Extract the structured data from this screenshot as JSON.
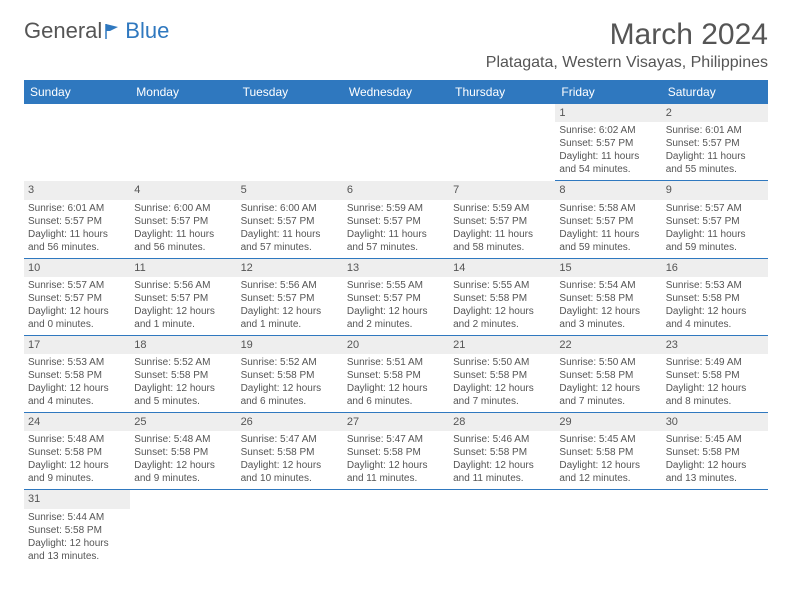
{
  "logo": {
    "part1": "General",
    "part2": "Blue"
  },
  "title": "March 2024",
  "location": "Platagata, Western Visayas, Philippines",
  "colors": {
    "header_bg": "#2f78bf",
    "header_text": "#ffffff",
    "daynum_bg": "#eeeeee",
    "text": "#555555",
    "row_divider": "#2f78bf"
  },
  "weekdays": [
    "Sunday",
    "Monday",
    "Tuesday",
    "Wednesday",
    "Thursday",
    "Friday",
    "Saturday"
  ],
  "weeks": [
    [
      null,
      null,
      null,
      null,
      null,
      {
        "n": "1",
        "sr": "Sunrise: 6:02 AM",
        "ss": "Sunset: 5:57 PM",
        "dl": "Daylight: 11 hours and 54 minutes."
      },
      {
        "n": "2",
        "sr": "Sunrise: 6:01 AM",
        "ss": "Sunset: 5:57 PM",
        "dl": "Daylight: 11 hours and 55 minutes."
      }
    ],
    [
      {
        "n": "3",
        "sr": "Sunrise: 6:01 AM",
        "ss": "Sunset: 5:57 PM",
        "dl": "Daylight: 11 hours and 56 minutes."
      },
      {
        "n": "4",
        "sr": "Sunrise: 6:00 AM",
        "ss": "Sunset: 5:57 PM",
        "dl": "Daylight: 11 hours and 56 minutes."
      },
      {
        "n": "5",
        "sr": "Sunrise: 6:00 AM",
        "ss": "Sunset: 5:57 PM",
        "dl": "Daylight: 11 hours and 57 minutes."
      },
      {
        "n": "6",
        "sr": "Sunrise: 5:59 AM",
        "ss": "Sunset: 5:57 PM",
        "dl": "Daylight: 11 hours and 57 minutes."
      },
      {
        "n": "7",
        "sr": "Sunrise: 5:59 AM",
        "ss": "Sunset: 5:57 PM",
        "dl": "Daylight: 11 hours and 58 minutes."
      },
      {
        "n": "8",
        "sr": "Sunrise: 5:58 AM",
        "ss": "Sunset: 5:57 PM",
        "dl": "Daylight: 11 hours and 59 minutes."
      },
      {
        "n": "9",
        "sr": "Sunrise: 5:57 AM",
        "ss": "Sunset: 5:57 PM",
        "dl": "Daylight: 11 hours and 59 minutes."
      }
    ],
    [
      {
        "n": "10",
        "sr": "Sunrise: 5:57 AM",
        "ss": "Sunset: 5:57 PM",
        "dl": "Daylight: 12 hours and 0 minutes."
      },
      {
        "n": "11",
        "sr": "Sunrise: 5:56 AM",
        "ss": "Sunset: 5:57 PM",
        "dl": "Daylight: 12 hours and 1 minute."
      },
      {
        "n": "12",
        "sr": "Sunrise: 5:56 AM",
        "ss": "Sunset: 5:57 PM",
        "dl": "Daylight: 12 hours and 1 minute."
      },
      {
        "n": "13",
        "sr": "Sunrise: 5:55 AM",
        "ss": "Sunset: 5:57 PM",
        "dl": "Daylight: 12 hours and 2 minutes."
      },
      {
        "n": "14",
        "sr": "Sunrise: 5:55 AM",
        "ss": "Sunset: 5:58 PM",
        "dl": "Daylight: 12 hours and 2 minutes."
      },
      {
        "n": "15",
        "sr": "Sunrise: 5:54 AM",
        "ss": "Sunset: 5:58 PM",
        "dl": "Daylight: 12 hours and 3 minutes."
      },
      {
        "n": "16",
        "sr": "Sunrise: 5:53 AM",
        "ss": "Sunset: 5:58 PM",
        "dl": "Daylight: 12 hours and 4 minutes."
      }
    ],
    [
      {
        "n": "17",
        "sr": "Sunrise: 5:53 AM",
        "ss": "Sunset: 5:58 PM",
        "dl": "Daylight: 12 hours and 4 minutes."
      },
      {
        "n": "18",
        "sr": "Sunrise: 5:52 AM",
        "ss": "Sunset: 5:58 PM",
        "dl": "Daylight: 12 hours and 5 minutes."
      },
      {
        "n": "19",
        "sr": "Sunrise: 5:52 AM",
        "ss": "Sunset: 5:58 PM",
        "dl": "Daylight: 12 hours and 6 minutes."
      },
      {
        "n": "20",
        "sr": "Sunrise: 5:51 AM",
        "ss": "Sunset: 5:58 PM",
        "dl": "Daylight: 12 hours and 6 minutes."
      },
      {
        "n": "21",
        "sr": "Sunrise: 5:50 AM",
        "ss": "Sunset: 5:58 PM",
        "dl": "Daylight: 12 hours and 7 minutes."
      },
      {
        "n": "22",
        "sr": "Sunrise: 5:50 AM",
        "ss": "Sunset: 5:58 PM",
        "dl": "Daylight: 12 hours and 7 minutes."
      },
      {
        "n": "23",
        "sr": "Sunrise: 5:49 AM",
        "ss": "Sunset: 5:58 PM",
        "dl": "Daylight: 12 hours and 8 minutes."
      }
    ],
    [
      {
        "n": "24",
        "sr": "Sunrise: 5:48 AM",
        "ss": "Sunset: 5:58 PM",
        "dl": "Daylight: 12 hours and 9 minutes."
      },
      {
        "n": "25",
        "sr": "Sunrise: 5:48 AM",
        "ss": "Sunset: 5:58 PM",
        "dl": "Daylight: 12 hours and 9 minutes."
      },
      {
        "n": "26",
        "sr": "Sunrise: 5:47 AM",
        "ss": "Sunset: 5:58 PM",
        "dl": "Daylight: 12 hours and 10 minutes."
      },
      {
        "n": "27",
        "sr": "Sunrise: 5:47 AM",
        "ss": "Sunset: 5:58 PM",
        "dl": "Daylight: 12 hours and 11 minutes."
      },
      {
        "n": "28",
        "sr": "Sunrise: 5:46 AM",
        "ss": "Sunset: 5:58 PM",
        "dl": "Daylight: 12 hours and 11 minutes."
      },
      {
        "n": "29",
        "sr": "Sunrise: 5:45 AM",
        "ss": "Sunset: 5:58 PM",
        "dl": "Daylight: 12 hours and 12 minutes."
      },
      {
        "n": "30",
        "sr": "Sunrise: 5:45 AM",
        "ss": "Sunset: 5:58 PM",
        "dl": "Daylight: 12 hours and 13 minutes."
      }
    ],
    [
      {
        "n": "31",
        "sr": "Sunrise: 5:44 AM",
        "ss": "Sunset: 5:58 PM",
        "dl": "Daylight: 12 hours and 13 minutes."
      },
      null,
      null,
      null,
      null,
      null,
      null
    ]
  ]
}
